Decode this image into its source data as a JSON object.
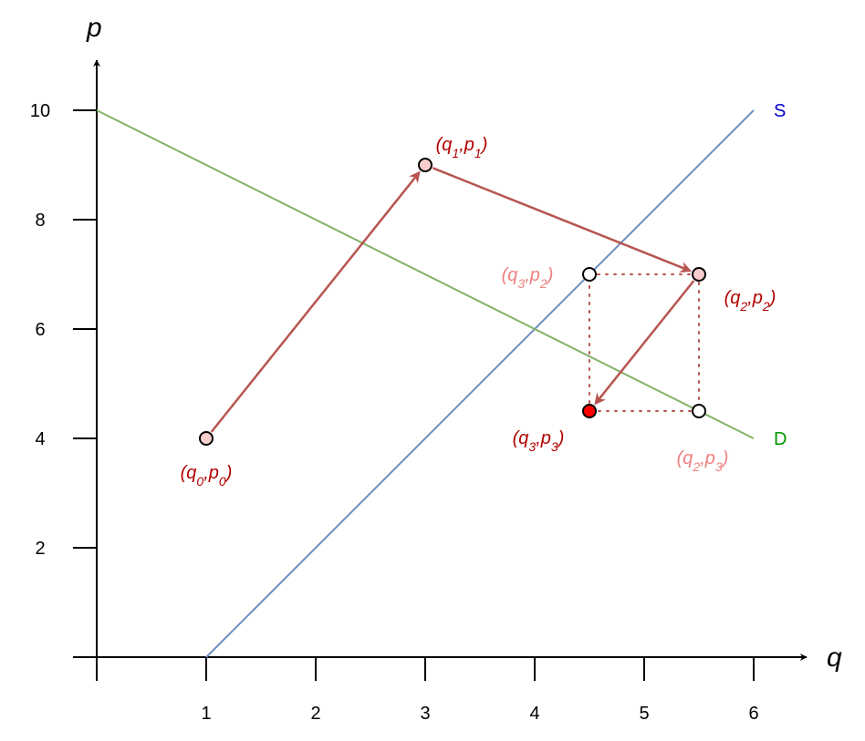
{
  "chart_data": {
    "type": "line",
    "title": "",
    "xlabel": "q",
    "ylabel": "p",
    "xlim": [
      0,
      6
    ],
    "ylim": [
      0,
      10
    ],
    "x_ticks": [
      "1",
      "2",
      "3",
      "4",
      "5",
      "6"
    ],
    "y_ticks": [
      "2",
      "4",
      "6",
      "8",
      "10"
    ],
    "grid": false,
    "series": [
      {
        "name": "S",
        "color": "#6c8ebf",
        "points": [
          [
            1,
            0
          ],
          [
            6,
            10
          ]
        ]
      },
      {
        "name": "D",
        "color": "#82b366",
        "points": [
          [
            0,
            10
          ],
          [
            6,
            4
          ]
        ]
      }
    ],
    "series_label_colors": {
      "S": "#0000cc",
      "D": "#009900"
    },
    "points": [
      {
        "label": "q0,p0",
        "q": 1,
        "p": 4,
        "fill": "#f8cecc",
        "label_color": "#b20000"
      },
      {
        "label": "q1,p1",
        "q": 3,
        "p": 9,
        "fill": "#f8cecc",
        "label_color": "#b20000"
      },
      {
        "label": "q2,p2",
        "q": 5.5,
        "p": 7,
        "fill": "#f8cecc",
        "label_color": "#b20000"
      },
      {
        "label": "q3,p2",
        "q": 4.5,
        "p": 7,
        "fill": "#ffffff",
        "label_color": "#f08080"
      },
      {
        "label": "q2,p3",
        "q": 5.5,
        "p": 4.5,
        "fill": "#ffffff",
        "label_color": "#f08080"
      },
      {
        "label": "q3,p3",
        "q": 4.5,
        "p": 4.5,
        "fill": "#ff0000",
        "label_color": "#b20000"
      }
    ],
    "arrows": [
      {
        "from": [
          1,
          4
        ],
        "to": [
          3,
          9
        ]
      },
      {
        "from": [
          3,
          9
        ],
        "to": [
          5.5,
          7
        ]
      },
      {
        "from": [
          5.5,
          7
        ],
        "to": [
          4.5,
          4.5
        ]
      }
    ],
    "arrow_color": "#b85450",
    "guide_color": "#b85450"
  }
}
